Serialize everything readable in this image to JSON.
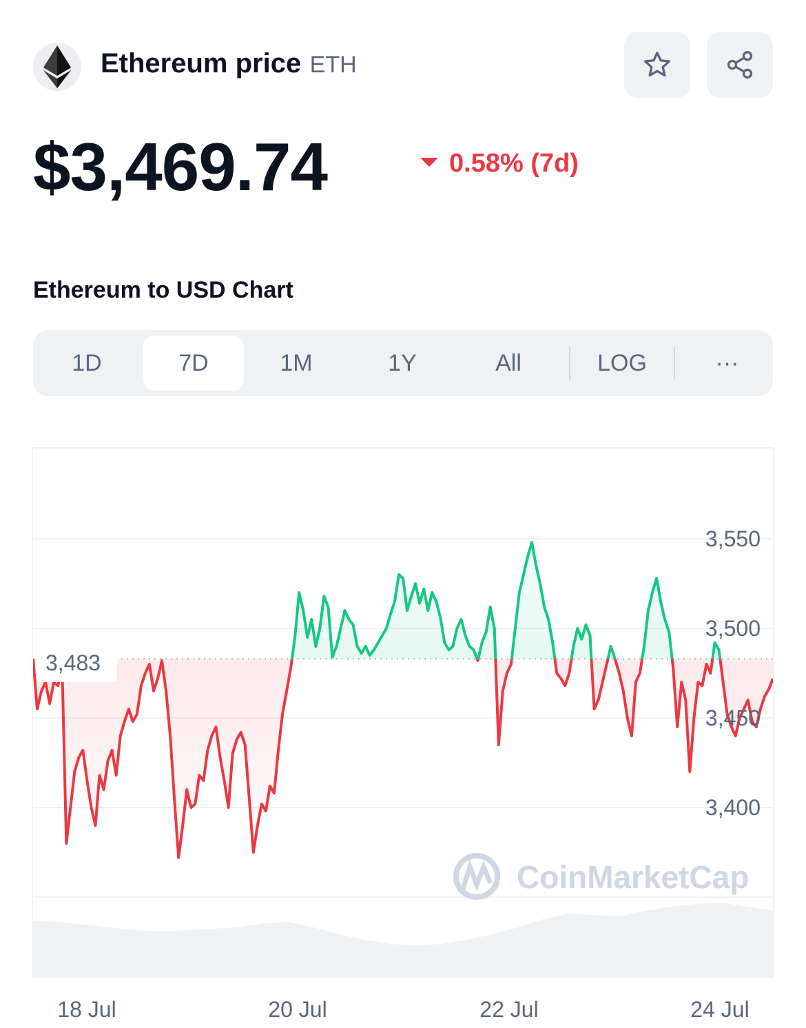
{
  "header": {
    "title": "Ethereum price",
    "symbol": "ETH",
    "logo_icon": "ethereum-diamond-icon",
    "favorite_icon": "star-icon",
    "share_icon": "share-icon"
  },
  "price": {
    "value": "$3,469.74",
    "change_text": "0.58% (7d)",
    "change_direction": "down",
    "change_color": "#ea3943"
  },
  "chart_section": {
    "title": "Ethereum to USD Chart"
  },
  "ranges": {
    "items": [
      "1D",
      "7D",
      "1M",
      "1Y",
      "All"
    ],
    "active": "7D",
    "log_label": "LOG",
    "more_label": "···"
  },
  "colors": {
    "up": "#16c784",
    "down": "#ea3943",
    "volume": "#eff2f5"
  },
  "chart_data": {
    "type": "line",
    "title": "",
    "xlabel": "",
    "ylabel": "",
    "x_ticks": [
      "18 Jul",
      "20 Jul",
      "22 Jul",
      "24 Jul"
    ],
    "y_ticks": [
      "3,550",
      "3,500",
      "3,450",
      "3,400"
    ],
    "ylim": [
      3340,
      3600
    ],
    "reference_line": {
      "value": 3483,
      "label": "3,483"
    },
    "watermark": "CoinMarketCap",
    "series": [
      {
        "values": [
          3483,
          3455,
          3465,
          3470,
          3458,
          3470,
          3468,
          3478,
          3380,
          3400,
          3420,
          3428,
          3432,
          3415,
          3400,
          3390,
          3418,
          3410,
          3426,
          3432,
          3418,
          3440,
          3448,
          3455,
          3448,
          3452,
          3468,
          3475,
          3480,
          3465,
          3472,
          3482,
          3465,
          3440,
          3405,
          3372,
          3390,
          3410,
          3400,
          3402,
          3418,
          3415,
          3432,
          3440,
          3445,
          3428,
          3415,
          3400,
          3430,
          3438,
          3442,
          3435,
          3405,
          3375,
          3390,
          3402,
          3398,
          3412,
          3408,
          3432,
          3452,
          3465,
          3478,
          3495,
          3520,
          3510,
          3495,
          3505,
          3490,
          3500,
          3518,
          3512,
          3484,
          3490,
          3500,
          3510,
          3505,
          3502,
          3490,
          3486,
          3490,
          3485,
          3488,
          3492,
          3496,
          3500,
          3508,
          3515,
          3530,
          3528,
          3510,
          3518,
          3525,
          3514,
          3522,
          3510,
          3520,
          3515,
          3506,
          3492,
          3488,
          3490,
          3500,
          3505,
          3496,
          3490,
          3488,
          3482,
          3492,
          3498,
          3512,
          3500,
          3435,
          3465,
          3475,
          3480,
          3500,
          3520,
          3530,
          3540,
          3548,
          3535,
          3525,
          3512,
          3505,
          3492,
          3475,
          3472,
          3468,
          3475,
          3490,
          3500,
          3494,
          3502,
          3496,
          3455,
          3460,
          3470,
          3480,
          3490,
          3483,
          3475,
          3465,
          3450,
          3440,
          3470,
          3475,
          3490,
          3510,
          3520,
          3528,
          3515,
          3505,
          3498,
          3478,
          3445,
          3470,
          3460,
          3420,
          3450,
          3470,
          3468,
          3480,
          3475,
          3492,
          3488,
          3470,
          3452,
          3445,
          3440,
          3450,
          3455,
          3460,
          3448,
          3445,
          3455,
          3462,
          3466,
          3472
        ]
      }
    ],
    "volume_note": "volume shown as grey area under chart"
  }
}
